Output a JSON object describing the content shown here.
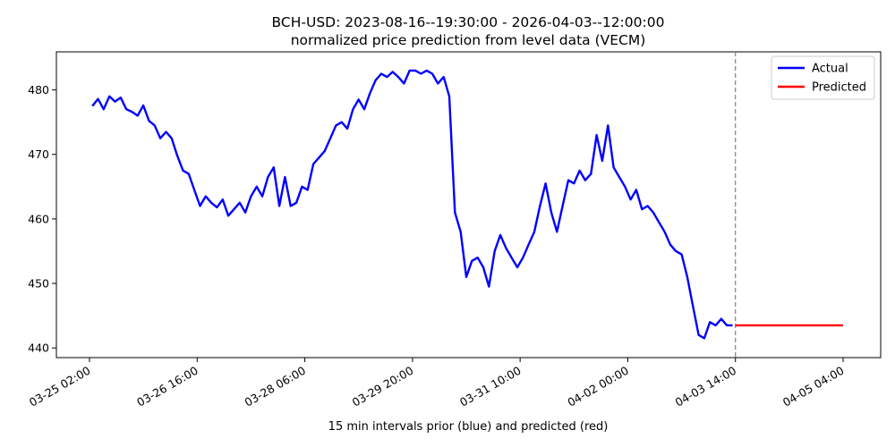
{
  "chart_data": {
    "type": "line",
    "title": "BCH-USD: 2023-08-16--19:30:00 - 2026-04-03--12:00:00",
    "subtitle": "normalized price prediction from level data (VECM)",
    "xlabel": "15 min intervals prior (blue) and predicted (red)",
    "ylabel": "",
    "x_tick_labels": [
      "03-25 02:00",
      "03-26 16:00",
      "03-28 06:00",
      "03-29 20:00",
      "03-31 10:00",
      "04-02 00:00",
      "04-03 14:00",
      "04-05 04:00"
    ],
    "y_ticks": [
      440,
      450,
      460,
      470,
      480
    ],
    "xlim": [
      "03-25 02:00",
      "04-05 04:00"
    ],
    "ylim": [
      438.5,
      485.9
    ],
    "grid": false,
    "legend": "top-right",
    "forecast_start": "04-03 14:00",
    "series": [
      {
        "name": "Actual",
        "color": "#0000ff",
        "points": [
          [
            "03-25 03:00",
            477.5
          ],
          [
            "03-25 05:00",
            478.6
          ],
          [
            "03-25 07:00",
            477.0
          ],
          [
            "03-25 09:00",
            479.0
          ],
          [
            "03-25 11:00",
            478.2
          ],
          [
            "03-25 13:00",
            478.8
          ],
          [
            "03-25 15:00",
            477.0
          ],
          [
            "03-25 17:00",
            476.6
          ],
          [
            "03-25 19:00",
            476.0
          ],
          [
            "03-25 21:00",
            477.6
          ],
          [
            "03-25 23:00",
            475.2
          ],
          [
            "03-26 01:00",
            474.5
          ],
          [
            "03-26 03:00",
            472.5
          ],
          [
            "03-26 05:00",
            473.5
          ],
          [
            "03-26 07:00",
            472.5
          ],
          [
            "03-26 09:00",
            469.8
          ],
          [
            "03-26 11:00",
            467.5
          ],
          [
            "03-26 13:00",
            467.0
          ],
          [
            "03-26 15:00",
            464.5
          ],
          [
            "03-26 17:00",
            462.0
          ],
          [
            "03-26 19:00",
            463.5
          ],
          [
            "03-26 21:00",
            462.5
          ],
          [
            "03-26 23:00",
            461.8
          ],
          [
            "03-27 01:00",
            463.0
          ],
          [
            "03-27 03:00",
            460.5
          ],
          [
            "03-27 05:00",
            461.5
          ],
          [
            "03-27 07:00",
            462.5
          ],
          [
            "03-27 09:00",
            461.0
          ],
          [
            "03-27 11:00",
            463.5
          ],
          [
            "03-27 13:00",
            465.0
          ],
          [
            "03-27 15:00",
            463.5
          ],
          [
            "03-27 17:00",
            466.5
          ],
          [
            "03-27 19:00",
            468.0
          ],
          [
            "03-27 21:00",
            462.0
          ],
          [
            "03-27 23:00",
            466.5
          ],
          [
            "03-28 01:00",
            462.0
          ],
          [
            "03-28 03:00",
            462.5
          ],
          [
            "03-28 05:00",
            465.0
          ],
          [
            "03-28 07:00",
            464.5
          ],
          [
            "03-28 09:00",
            468.5
          ],
          [
            "03-28 11:00",
            469.5
          ],
          [
            "03-28 13:00",
            470.5
          ],
          [
            "03-28 15:00",
            472.5
          ],
          [
            "03-28 17:00",
            474.5
          ],
          [
            "03-28 19:00",
            475.0
          ],
          [
            "03-28 21:00",
            474.0
          ],
          [
            "03-28 23:00",
            477.0
          ],
          [
            "03-29 01:00",
            478.5
          ],
          [
            "03-29 03:00",
            477.0
          ],
          [
            "03-29 05:00",
            479.5
          ],
          [
            "03-29 07:00",
            481.5
          ],
          [
            "03-29 09:00",
            482.5
          ],
          [
            "03-29 11:00",
            482.0
          ],
          [
            "03-29 13:00",
            482.8
          ],
          [
            "03-29 15:00",
            482.0
          ],
          [
            "03-29 17:00",
            481.0
          ],
          [
            "03-29 19:00",
            483.0
          ],
          [
            "03-29 21:00",
            483.0
          ],
          [
            "03-29 23:00",
            482.5
          ],
          [
            "03-30 01:00",
            483.0
          ],
          [
            "03-30 03:00",
            482.5
          ],
          [
            "03-30 05:00",
            481.0
          ],
          [
            "03-30 07:00",
            482.0
          ],
          [
            "03-30 09:00",
            479.0
          ],
          [
            "03-30 11:00",
            461.0
          ],
          [
            "03-30 13:00",
            458.0
          ],
          [
            "03-30 15:00",
            451.0
          ],
          [
            "03-30 17:00",
            453.5
          ],
          [
            "03-30 19:00",
            454.0
          ],
          [
            "03-30 21:00",
            452.5
          ],
          [
            "03-30 23:00",
            449.5
          ],
          [
            "03-31 01:00",
            455.0
          ],
          [
            "03-31 03:00",
            457.5
          ],
          [
            "03-31 05:00",
            455.5
          ],
          [
            "03-31 07:00",
            454.0
          ],
          [
            "03-31 09:00",
            452.5
          ],
          [
            "03-31 11:00",
            454.0
          ],
          [
            "03-31 13:00",
            456.0
          ],
          [
            "03-31 15:00",
            458.0
          ],
          [
            "03-31 17:00",
            462.0
          ],
          [
            "03-31 19:00",
            465.5
          ],
          [
            "03-31 21:00",
            461.0
          ],
          [
            "03-31 23:00",
            458.0
          ],
          [
            "04-01 01:00",
            462.0
          ],
          [
            "04-01 03:00",
            466.0
          ],
          [
            "04-01 05:00",
            465.5
          ],
          [
            "04-01 07:00",
            467.5
          ],
          [
            "04-01 09:00",
            466.0
          ],
          [
            "04-01 11:00",
            467.0
          ],
          [
            "04-01 13:00",
            473.0
          ],
          [
            "04-01 15:00",
            469.0
          ],
          [
            "04-01 17:00",
            474.5
          ],
          [
            "04-01 19:00",
            468.0
          ],
          [
            "04-01 21:00",
            466.5
          ],
          [
            "04-01 23:00",
            465.0
          ],
          [
            "04-02 01:00",
            463.0
          ],
          [
            "04-02 03:00",
            464.5
          ],
          [
            "04-02 05:00",
            461.5
          ],
          [
            "04-02 07:00",
            462.0
          ],
          [
            "04-02 09:00",
            461.0
          ],
          [
            "04-02 11:00",
            459.5
          ],
          [
            "04-02 13:00",
            458.0
          ],
          [
            "04-02 15:00",
            456.0
          ],
          [
            "04-02 17:00",
            455.0
          ],
          [
            "04-02 19:00",
            454.5
          ],
          [
            "04-02 21:00",
            451.0
          ],
          [
            "04-02 23:00",
            446.5
          ],
          [
            "04-03 01:00",
            442.0
          ],
          [
            "04-03 03:00",
            441.5
          ],
          [
            "04-03 05:00",
            444.0
          ],
          [
            "04-03 07:00",
            443.5
          ],
          [
            "04-03 09:00",
            444.5
          ],
          [
            "04-03 11:00",
            443.5
          ],
          [
            "04-03 13:00",
            443.5
          ]
        ]
      },
      {
        "name": "Predicted",
        "color": "#ff0000",
        "points": [
          [
            "04-03 14:00",
            443.5
          ],
          [
            "04-05 04:00",
            443.5
          ]
        ]
      }
    ]
  }
}
